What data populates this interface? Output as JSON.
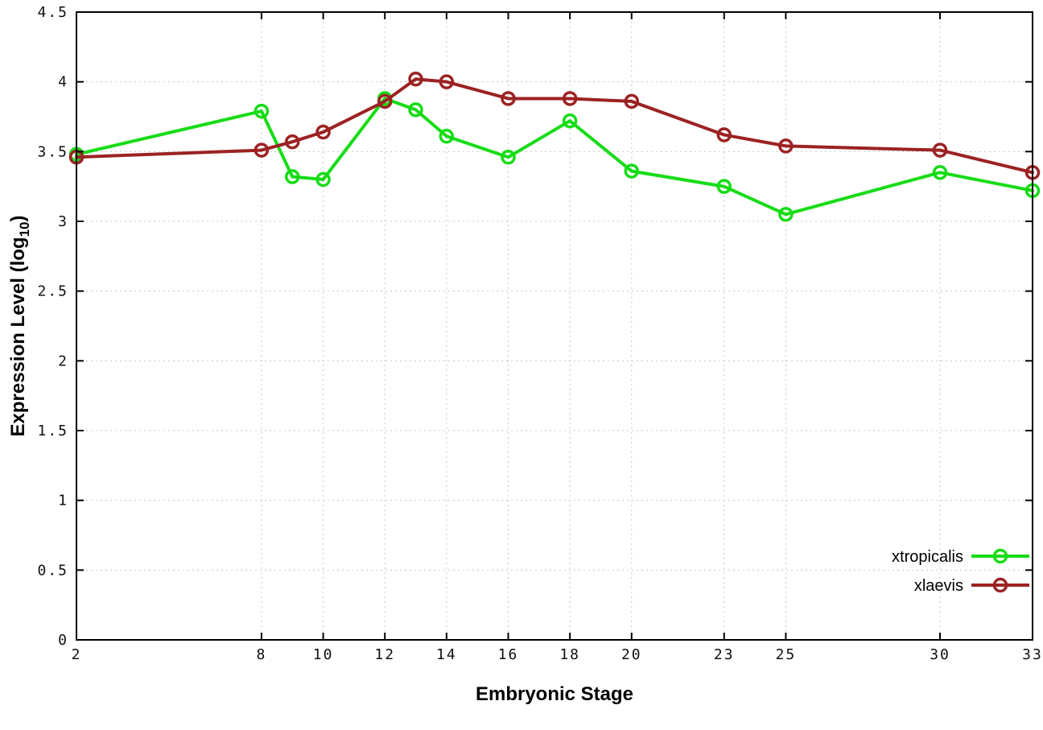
{
  "chart_data": {
    "type": "line",
    "title": "",
    "xlabel": "Embryonic Stage",
    "ylabel": "Expression Level (log10)",
    "ylabel_parts": {
      "main": "Expression Level (log",
      "sub": "10",
      "close": ")"
    },
    "xlim": [
      2,
      33
    ],
    "ylim": [
      0,
      4.5
    ],
    "xticks": [
      2,
      8,
      10,
      12,
      14,
      16,
      18,
      20,
      23,
      25,
      30,
      33
    ],
    "yticks": [
      0,
      0.5,
      1,
      1.5,
      2,
      2.5,
      3,
      3.5,
      4,
      4.5
    ],
    "ytick_labels": [
      "0",
      "0.5",
      "1",
      "1.5",
      "2",
      "2.5",
      "3",
      "3.5",
      "4",
      "4.5"
    ],
    "grid": true,
    "legend_position": "inside-bottom-right",
    "x": [
      2,
      8,
      9,
      10,
      12,
      13,
      14,
      16,
      18,
      20,
      23,
      25,
      30,
      33
    ],
    "series": [
      {
        "name": "xtropicalis",
        "color": "#16dc16",
        "values": [
          3.48,
          3.79,
          3.32,
          3.3,
          3.88,
          3.8,
          3.61,
          3.46,
          3.72,
          3.36,
          3.25,
          3.05,
          3.35,
          3.22
        ]
      },
      {
        "name": "xlaevis",
        "color": "#9c2222",
        "values": [
          3.46,
          3.51,
          3.57,
          3.64,
          3.86,
          4.02,
          4.0,
          3.88,
          3.88,
          3.86,
          3.62,
          3.54,
          3.51,
          3.35
        ]
      }
    ]
  }
}
